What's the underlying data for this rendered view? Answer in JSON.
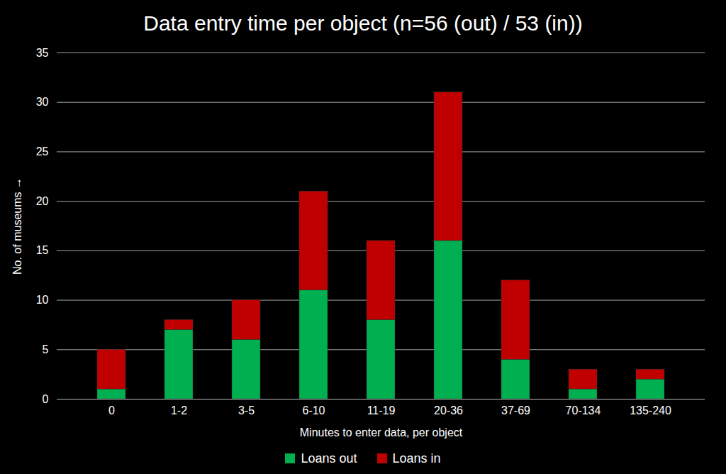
{
  "chart_data": {
    "type": "bar",
    "title": "Data entry time per object (n=56 (out) / 53 (in))",
    "x_label": "Minutes to enter data, per object",
    "y_label": "No. of museums",
    "categories": [
      "0",
      "1-2",
      "3-5",
      "6-10",
      "11-19",
      "20-36",
      "37-69",
      "70-134",
      "135-240"
    ],
    "series": [
      {
        "name": "Loans out",
        "color": "#00b050",
        "values": [
          1,
          7,
          6,
          11,
          8,
          16,
          4,
          1,
          2
        ]
      },
      {
        "name": "Loans in",
        "color": "#c00000",
        "values": [
          4,
          1,
          4,
          10,
          8,
          15,
          8,
          2,
          1
        ]
      }
    ],
    "stacked": true,
    "ylim": [
      0,
      35
    ],
    "yticks": [
      0,
      5,
      10,
      15,
      20,
      25,
      30,
      35
    ],
    "grid": true,
    "legend": "bottom"
  }
}
